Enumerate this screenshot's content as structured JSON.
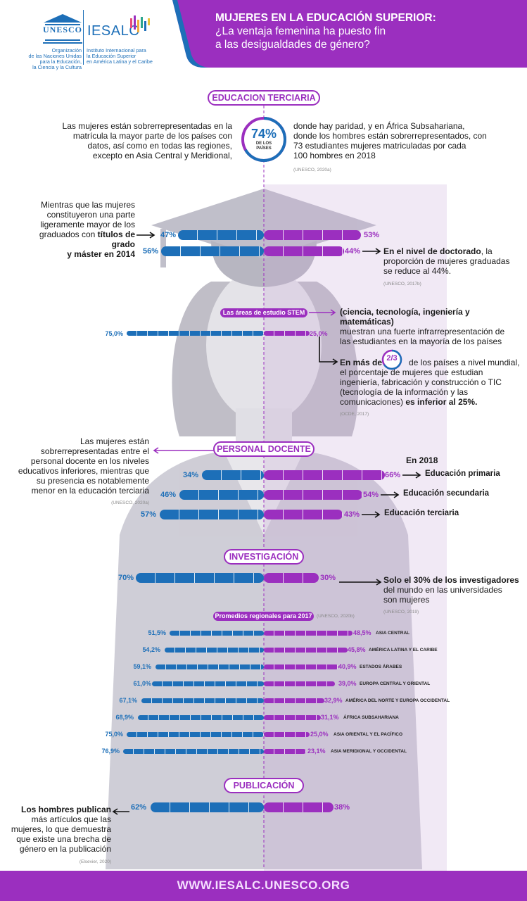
{
  "header": {
    "unesco_wordmark": "UNESCO",
    "unesco_caption": [
      "Organización",
      "de las Naciones Unidas",
      "para la Educación,",
      "la Ciencia y la Cultura"
    ],
    "iesalc_wordmark": "IESALC",
    "iesalc_caption": [
      "Instituto Internacional para",
      "la Educación Superior",
      "en América Latina y el Caribe"
    ],
    "title_bold": "MUJERES EN LA EDUCACIÓN SUPERIOR:",
    "title_line2": "¿La ventaja femenina ha puesto fin",
    "title_line3": "a las desigualdades de género?"
  },
  "colors": {
    "blue": "#1d6fb8",
    "purple": "#9b2fbf",
    "silhouette": "#b7b6c2",
    "footer": "#9b2fbf"
  },
  "tertiary": {
    "heading": "EDUCACION TERCIARIA",
    "left_text": [
      "Las mujeres están sobrerrepresentadas en la",
      "matrícula la mayor parte de los países con",
      "datos, así como en todas las regiones,",
      "excepto en Asia Central y Meridional,"
    ],
    "circle_value": "74%",
    "circle_caption": [
      "DE LOS",
      "PAÍSES"
    ],
    "right_text": [
      "donde hay paridad, y en África Subsahariana,",
      "donde los hombres están sobrerrepresentados, con",
      "73 estudiantes mujeres matriculadas por cada",
      "100 hombres en 2018"
    ],
    "source": "(UNESCO, 2020a)"
  },
  "graduates": {
    "left_text": [
      "Mientras que las mujeres",
      "constituyeron una parte",
      "ligeramente mayor de los"
    ],
    "left_line4_normal": "graduados con ",
    "left_line4_bold": "títulos de grado",
    "left_line5_bold": "y máster en 2014",
    "bars": [
      {
        "men": 47,
        "women": 53,
        "men_label": "47%",
        "women_label": "53%"
      },
      {
        "men": 56,
        "women": 44,
        "men_label": "56%",
        "women_label": "44%"
      }
    ],
    "right_bold": "En el nivel de doctorado",
    "right_rest": ", la",
    "right_text": [
      "proporción de mujeres graduadas",
      "se reduce al 44%."
    ],
    "source": "(UNESCO, 2017b)"
  },
  "stem": {
    "pill": "Las áreas de estudio STEM",
    "right_bold": "(ciencia, tecnología, ingeniería y matemáticas)",
    "right_text": [
      "muestran una fuerte infrarrepresentación de",
      "las estudiantes en la mayoría de los países"
    ],
    "men": 75,
    "women": 25,
    "men_label": "75,0%",
    "women_label": "25,0%",
    "fraction_prefix": "En más de",
    "fraction": "2/3",
    "fraction_suffix": "de los países a nivel mundial,",
    "fraction_text": [
      "el porcentaje de mujeres que estudian",
      "ingeniería, fabricación  y construcción o TIC",
      "(tecnología de la información y las"
    ],
    "fraction_last_normal": "comunicaciones) ",
    "fraction_last_bold": "es inferior al 25%.",
    "source": "(OCDE, 2017)"
  },
  "teaching": {
    "heading": "PERSONAL DOCENTE",
    "left_text": [
      "Las mujeres están",
      "sobrerrepresentadas entre el",
      "personal docente en los niveles",
      "educativos inferiores, mientras que",
      "su presencia es notablemente",
      "menor en la educación terciaria"
    ],
    "source": "(UNESCO, 2020a)",
    "year": "En 2018",
    "bars": [
      {
        "men": 34,
        "women": 66,
        "men_label": "34%",
        "women_label": "66%",
        "label": "Educación primaria"
      },
      {
        "men": 46,
        "women": 54,
        "men_label": "46%",
        "women_label": "54%",
        "label": "Educación secundaria"
      },
      {
        "men": 57,
        "women": 43,
        "men_label": "57%",
        "women_label": "43%",
        "label": "Educación terciaria"
      }
    ]
  },
  "research": {
    "heading": "INVESTIGACIÓN",
    "men": 70,
    "women": 30,
    "men_label": "70%",
    "women_label": "30%",
    "right_bold": "Solo el 30% de los investigadores",
    "right_text": [
      "del mundo en las universidades",
      "son mujeres"
    ],
    "source": "(UNESCO, 2019)",
    "regional_pill": "Promedios regionales para 2017",
    "regional_source": "(UNESCO, 2020b)",
    "regions": [
      {
        "men": 51.5,
        "women": 48.5,
        "men_label": "51,5%",
        "women_label": "48,5%",
        "name": "ASIA CENTRAL"
      },
      {
        "men": 54.2,
        "women": 45.8,
        "men_label": "54,2%",
        "women_label": "45,8%",
        "name": "AMÉRICA LATINA Y EL CARIBE"
      },
      {
        "men": 59.1,
        "women": 40.9,
        "men_label": "59,1%",
        "women_label": "40,9%",
        "name": "ESTADOS ÁRABES"
      },
      {
        "men": 61.0,
        "women": 39.0,
        "men_label": "61,0%",
        "women_label": "39,0%",
        "name": "EUROPA CENTRAL Y ORIENTAL"
      },
      {
        "men": 67.1,
        "women": 32.9,
        "men_label": "67,1%",
        "women_label": "32,9%",
        "name": "AMÉRICA DEL NORTE Y EUROPA OCCIDENTAL"
      },
      {
        "men": 68.9,
        "women": 31.1,
        "men_label": "68,9%",
        "women_label": "31,1%",
        "name": "ÁFRICA SUBSAHARIANA"
      },
      {
        "men": 75.0,
        "women": 25.0,
        "men_label": "75,0%",
        "women_label": "25,0%",
        "name": "ASIA ORIENTAL Y EL PACÍFICO"
      },
      {
        "men": 76.9,
        "women": 23.1,
        "men_label": "76,9%",
        "women_label": "23,1%",
        "name": "ASIA MERIDIONAL Y OCCIDENTAL"
      }
    ]
  },
  "publication": {
    "heading": "PUBLICACIÓN",
    "men": 62,
    "women": 38,
    "men_label": "62%",
    "women_label": "38%",
    "left_bold": "Los hombres publican",
    "left_text": [
      "más artículos que las",
      "mujeres, lo que demuestra",
      "que existe una brecha de",
      "género en la publicación"
    ],
    "source": "(Elsevier, 2020)"
  },
  "footer": {
    "url": "WWW.IESALC.UNESCO.ORG"
  }
}
